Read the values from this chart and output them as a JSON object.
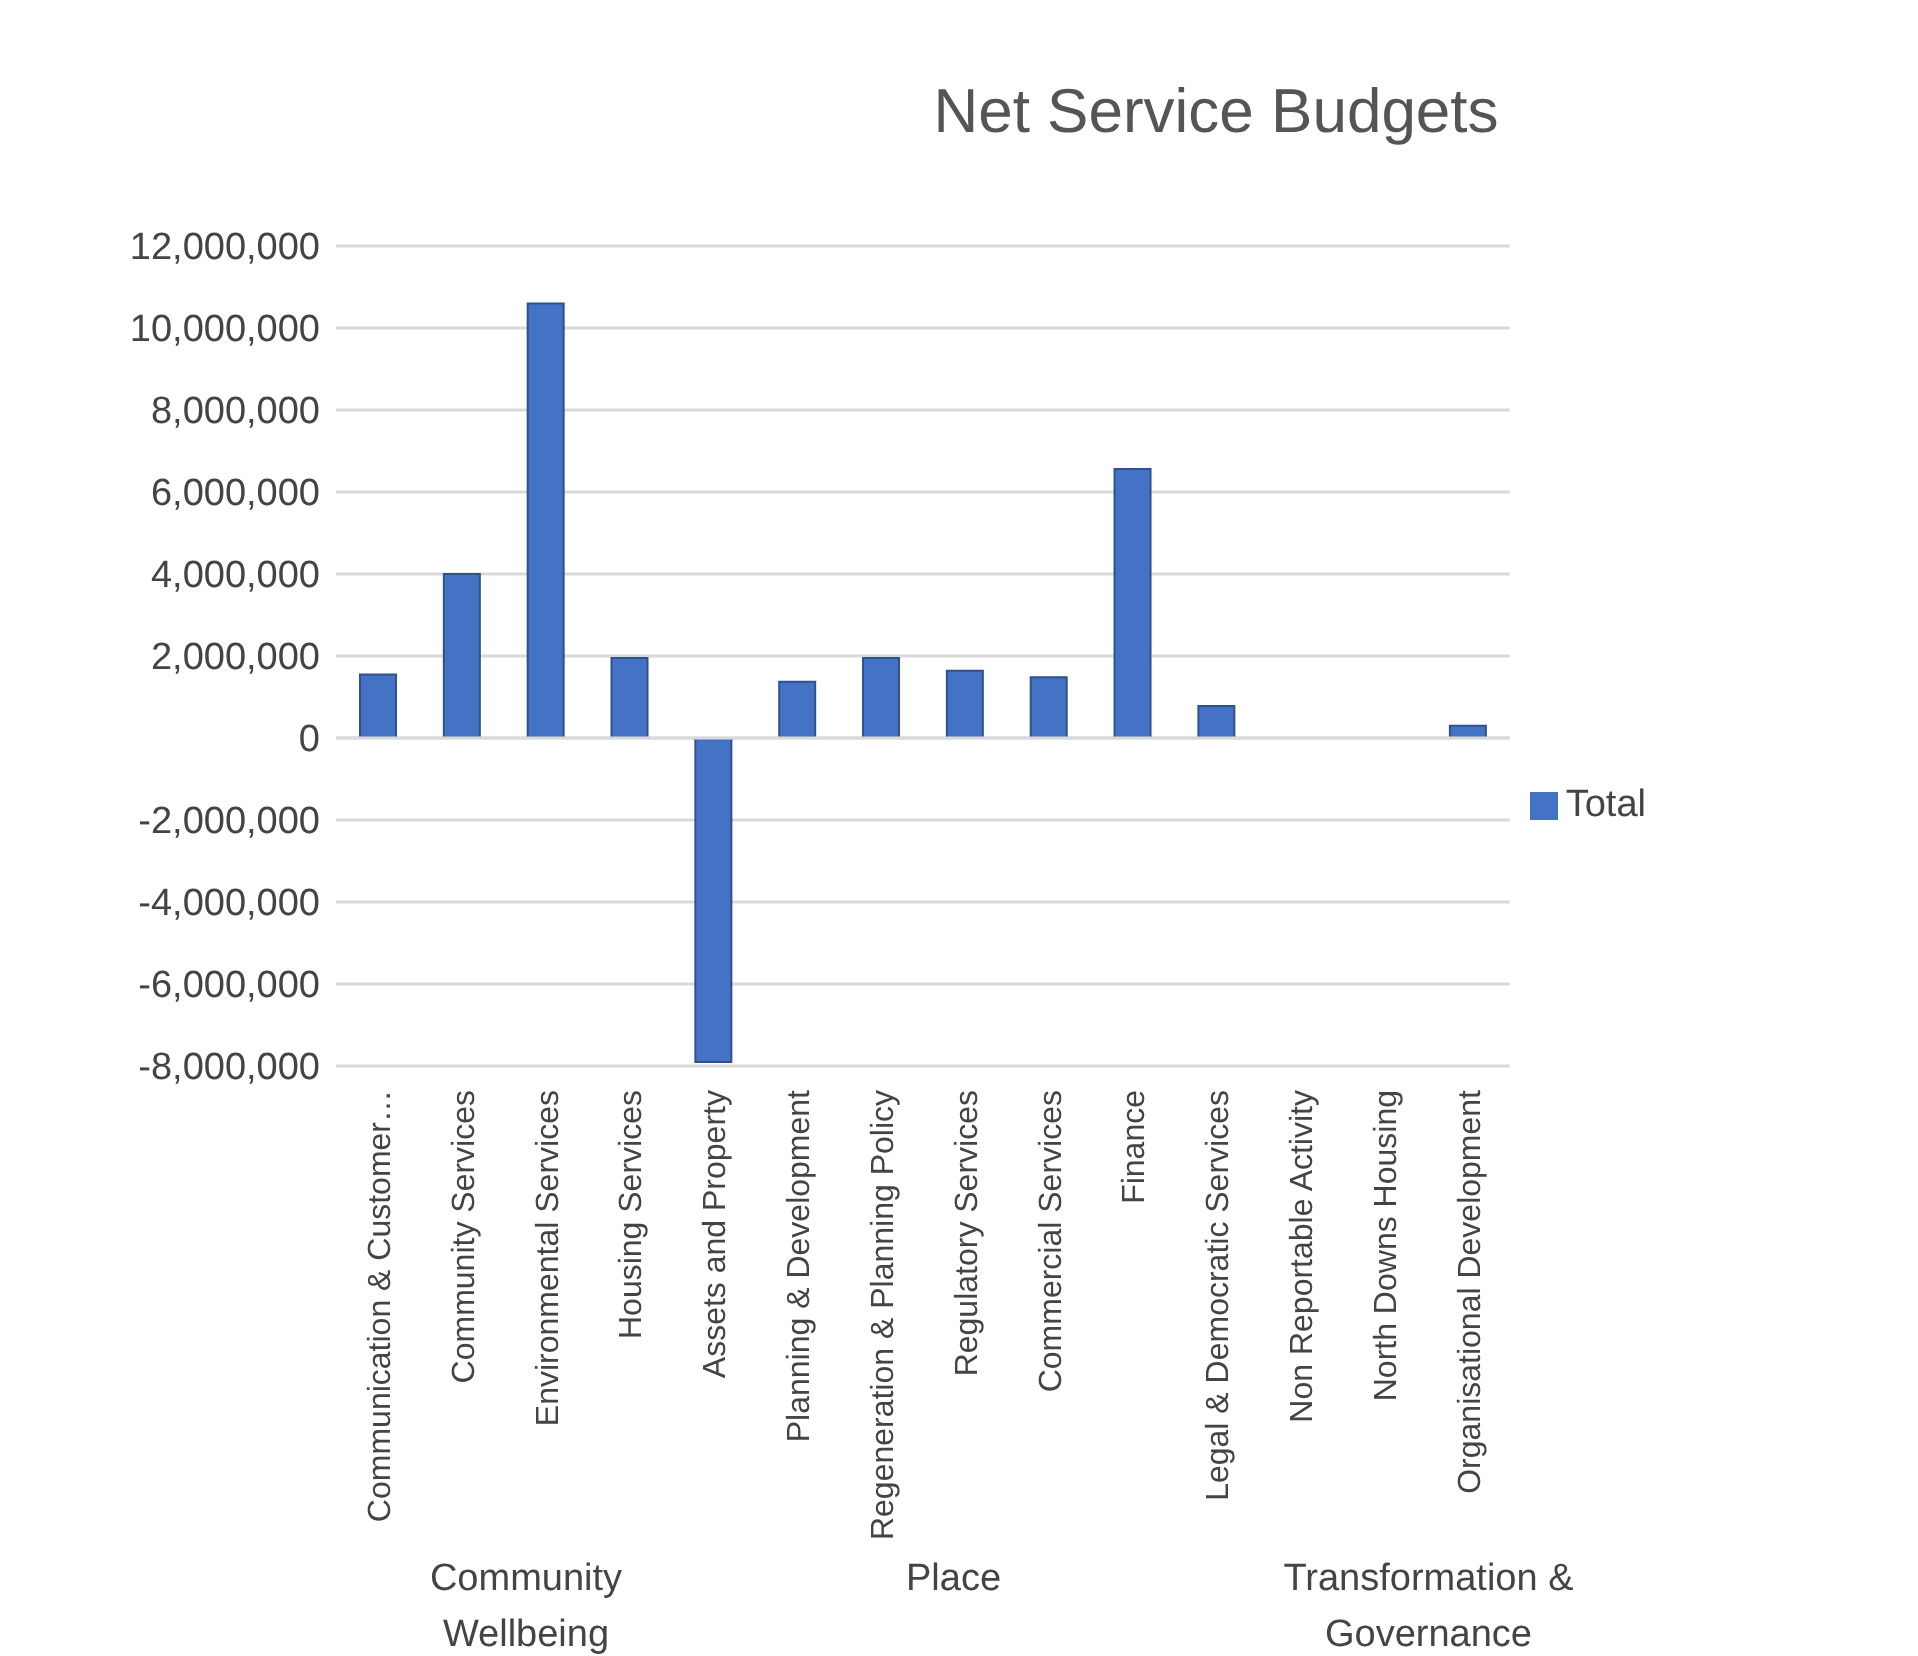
{
  "chart_data": {
    "type": "bar",
    "title": "Net Service Budgets",
    "categories": [
      "Communication & Customer…",
      "Community Services",
      "Environmental Services",
      "Housing Services",
      "Assets and Property",
      "Planning & Development",
      "Regeneration & Planning Policy",
      "Regulatory Services",
      "Commercial Services",
      "Finance",
      "Legal & Democratic Services",
      "Non Reportable Activity",
      "North Downs Housing",
      "Organisational Development"
    ],
    "series": [
      {
        "name": "Total",
        "color": "#4472c4",
        "values": [
          1550000,
          4000000,
          10600000,
          1950000,
          -7900000,
          1370000,
          1950000,
          1640000,
          1480000,
          6560000,
          780000,
          null,
          null,
          300000
        ]
      }
    ],
    "ylim": [
      -8000000,
      12000000
    ],
    "yticks": [
      {
        "value": -8000000,
        "label": "-8,000,000"
      },
      {
        "value": -6000000,
        "label": "-6,000,000"
      },
      {
        "value": -4000000,
        "label": "-4,000,000"
      },
      {
        "value": -2000000,
        "label": "-2,000,000"
      },
      {
        "value": 0,
        "label": "0"
      },
      {
        "value": 2000000,
        "label": "2,000,000"
      },
      {
        "value": 4000000,
        "label": "4,000,000"
      },
      {
        "value": 6000000,
        "label": "6,000,000"
      },
      {
        "value": 8000000,
        "label": "8,000,000"
      },
      {
        "value": 10000000,
        "label": "10,000,000"
      },
      {
        "value": 12000000,
        "label": "12,000,000"
      }
    ],
    "grid": "y",
    "legend": "right",
    "annotations": [
      "Community Wellbeing",
      "Place",
      "Transformation & Governance"
    ]
  }
}
